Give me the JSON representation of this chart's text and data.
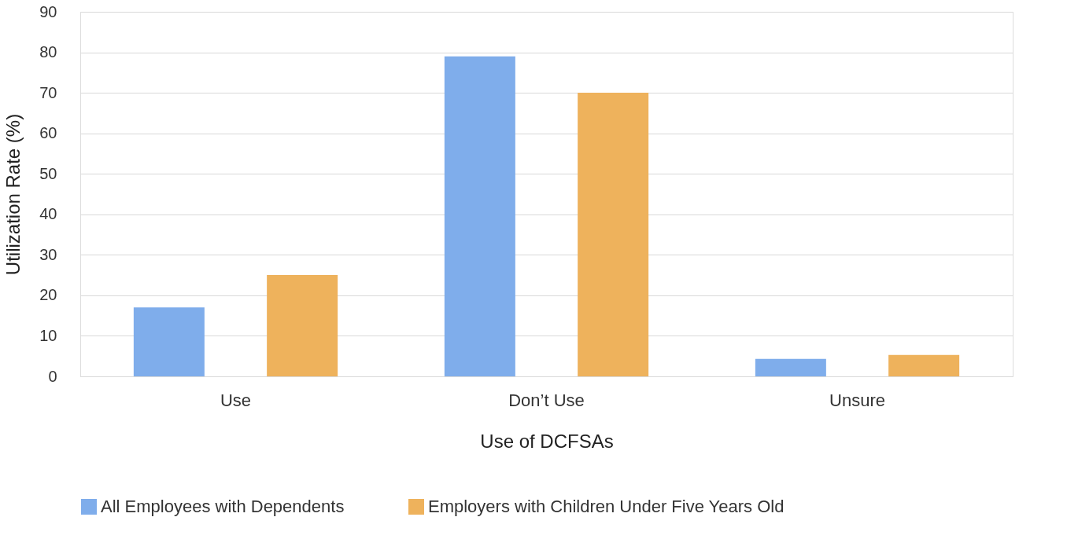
{
  "chart_data": {
    "type": "bar",
    "xlabel": "Use of DCFSAs",
    "ylabel": "Utilization Rate (%)",
    "categories": [
      "Use",
      "Don’t Use",
      "Unsure"
    ],
    "series": [
      {
        "name": "All Employees with Dependents",
        "color": "#7fadeb",
        "values": [
          17,
          79,
          4.3
        ]
      },
      {
        "name": "Employers with Children Under Five Years Old",
        "color": "#eeb25c",
        "values": [
          25,
          70,
          5.3
        ]
      }
    ],
    "ylim": [
      0,
      90
    ],
    "yticks": [
      0,
      10,
      20,
      30,
      40,
      50,
      60,
      70,
      80,
      90
    ],
    "grid": "y",
    "legend": "bottom"
  }
}
